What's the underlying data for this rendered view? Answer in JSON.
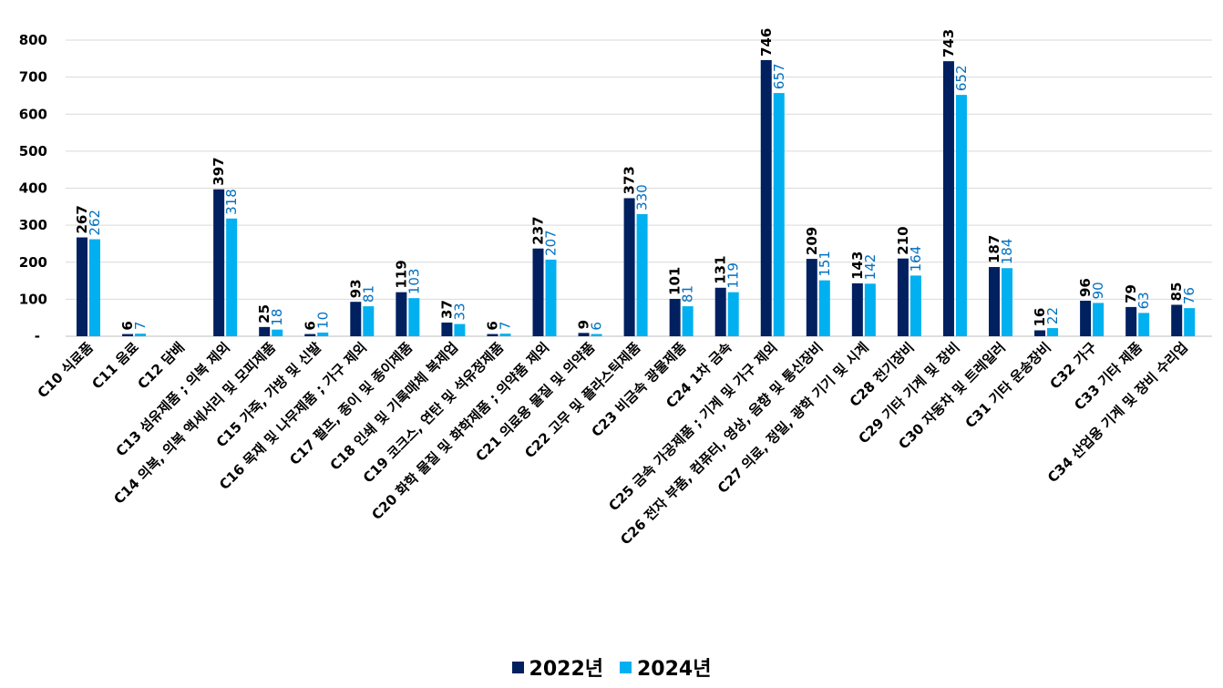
{
  "chart_data": {
    "type": "bar",
    "title": "",
    "xlabel": "",
    "ylabel": "",
    "ylim": [
      0,
      800
    ],
    "yticks": [
      0,
      100,
      200,
      300,
      400,
      500,
      600,
      700,
      800
    ],
    "ytick_labels": [
      "-",
      "100",
      "200",
      "300",
      "400",
      "500",
      "600",
      "700",
      "800"
    ],
    "grid": true,
    "legend_position": "bottom",
    "categories": [
      "C10 식료품",
      "C11 음료",
      "C12 담배",
      "C13 섬유제품 ; 의복 제외",
      "C14 의복, 의복 액세서리 및 모피제품",
      "C15 가죽, 가방 및 신발",
      "C16 목재 및 나무제품 ; 가구 제외",
      "C17 펄프, 종이 및 종이제품",
      "C18 인쇄 및 기록매체 복제업",
      "C19 코크스, 연탄 및 석유정제품",
      "C20 화학 물질 및 화학제품 ; 의약품 제외",
      "C21 의료용 물질 및 의약품",
      "C22 고무 및 플라스틱제품",
      "C23 비금속 광물제품",
      "C24 1차 금속",
      "C25 금속 가공제품 ; 기계 및 가구 제외",
      "C26 전자 부품, 컴퓨터, 영상, 음향 및 통신장비",
      "C27 의료, 정밀, 광학 기기 및 시계",
      "C28 전기장비",
      "C29 기타 기계 및 장비",
      "C30 자동차 및 트레일러",
      "C31 기타 운송장비",
      "C32 가구",
      "C33 기타 제품",
      "C34 산업용 기계 및 장비 수리업"
    ],
    "series": [
      {
        "name": "2022년",
        "color": "#002060",
        "label_color": "#000000",
        "values": [
          267,
          6,
          null,
          397,
          25,
          6,
          93,
          119,
          37,
          6,
          237,
          9,
          373,
          101,
          131,
          746,
          209,
          143,
          210,
          743,
          187,
          16,
          96,
          79,
          85
        ]
      },
      {
        "name": "2024년",
        "color": "#00B0F0",
        "label_color": "#0070C0",
        "values": [
          262,
          7,
          null,
          318,
          18,
          10,
          81,
          103,
          33,
          7,
          207,
          6,
          330,
          81,
          119,
          657,
          151,
          142,
          164,
          652,
          184,
          22,
          90,
          63,
          76
        ]
      }
    ]
  }
}
